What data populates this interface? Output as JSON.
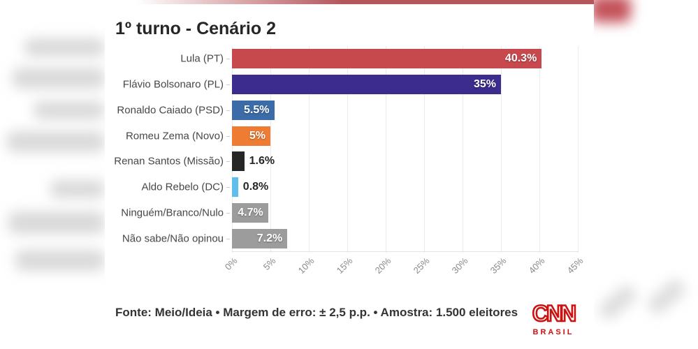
{
  "header": {
    "title": "1º turno - Cenário 2"
  },
  "chart_data": {
    "type": "bar",
    "orientation": "horizontal",
    "title": "1º turno - Cenário 2",
    "categories": [
      "Lula (PT)",
      "Flávio Bolsonaro (PL)",
      "Ronaldo Caiado (PSD)",
      "Romeu Zema (Novo)",
      "Renan Santos (Missão)",
      "Aldo Rebelo (DC)",
      "Ninguém/Branco/Nulo",
      "Não sabe/Não opinou"
    ],
    "values": [
      40.3,
      35,
      5.5,
      5,
      1.6,
      0.8,
      4.7,
      7.2
    ],
    "value_labels": [
      "40.3%",
      "35%",
      "5.5%",
      "5%",
      "1.6%",
      "0.8%",
      "4.7%",
      "7.2%"
    ],
    "bar_colors": [
      "#c8494d",
      "#3b2c8e",
      "#3c6ca8",
      "#ee7d33",
      "#262626",
      "#5fbeec",
      "#9c9c9c",
      "#9c9c9c"
    ],
    "label_inside": [
      true,
      true,
      true,
      true,
      false,
      false,
      true,
      true
    ],
    "x_ticks": [
      "0%",
      "5%",
      "10%",
      "15%",
      "20%",
      "25%",
      "30%",
      "35%",
      "40%",
      "45%"
    ],
    "xlabel": "",
    "ylabel": "",
    "xlim": [
      0,
      45
    ],
    "grid": true,
    "legend": "none"
  },
  "footer": {
    "source_text": "Fonte: Meio/Ideia • Margem de erro: ± 2,5 p.p. • Amostra: 1.500 eleitores",
    "logo_text": "CNN",
    "logo_sub_text": "BRASIL",
    "logo_color": "#cc1111"
  },
  "colors": {
    "grid_line": "#ebebeb",
    "axis_label": "#8a8a8a",
    "title_text": "#262626",
    "top_strip": "#b4565c"
  }
}
